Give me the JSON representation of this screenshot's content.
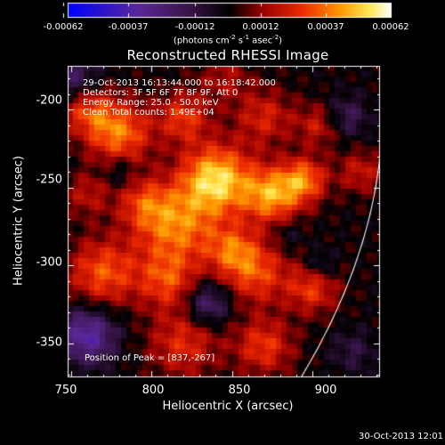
{
  "colorbar": {
    "colormap": "rhessi-signed (blue-purple-black-red-orange-yellow-white)",
    "ticks": [
      "-0.00062",
      "-0.00037",
      "-0.00012",
      "0.00012",
      "0.00037",
      "0.00062"
    ],
    "units_main": "(photons cm",
    "units_exp1": "-2",
    "units_mid": " s",
    "units_exp2": "-1",
    "units_end": " asec",
    "units_exp3": "-2",
    "units_close": ")"
  },
  "plot": {
    "title": "Reconstructed RHESSI Image",
    "info": [
      "29-Oct-2013 16:13:44.000 to 16:18:42.000",
      "Detectors: 3F 5F 6F 7F 8F 9F, Att 0",
      "Energy Range: 25.0 - 50.0 keV",
      "Clean    Total counts: 1.49E+04"
    ],
    "peak_label": "Position of Peak = [837,-267]",
    "xlabel": "Heliocentric X (arcsec)",
    "ylabel": "Heliocentric Y (arcsec)",
    "xticks": [
      "750",
      "800",
      "850",
      "900"
    ],
    "yticks": [
      "-200",
      "-250",
      "-300",
      "-350"
    ],
    "x_range": [
      748,
      942
    ],
    "y_range": [
      -172,
      -372
    ],
    "peak": [
      837,
      -267
    ],
    "limb_color": "#ffffff"
  },
  "footer": {
    "timestamp": "30-Oct-2013 12:01"
  }
}
